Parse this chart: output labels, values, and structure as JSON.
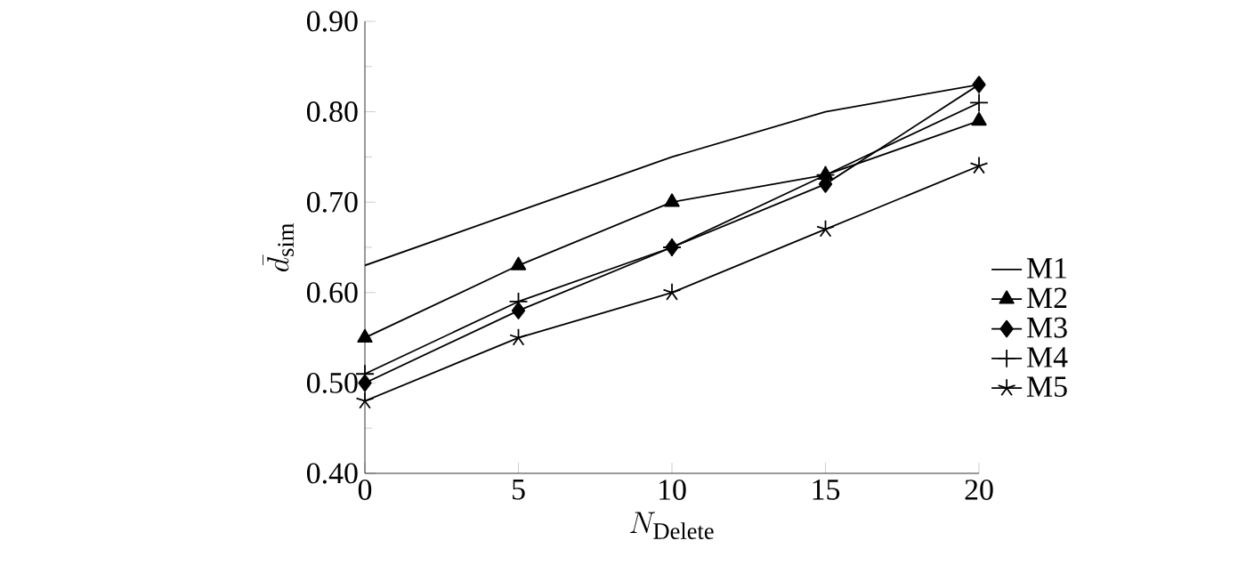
{
  "chart_data": {
    "type": "line",
    "xlabel": "N_{\\mathrm{Delete}}",
    "ylabel": "\\bar{d}_{\\mathrm{sim}}",
    "x": [
      0,
      5,
      10,
      15,
      20
    ],
    "series": [
      {
        "name": "M1",
        "color": "#000000",
        "marker": "none",
        "values": [
          0.63,
          0.69,
          0.75,
          0.8,
          0.83
        ]
      },
      {
        "name": "M2",
        "color": "#000000",
        "marker": "triangle",
        "values": [
          0.55,
          0.63,
          0.7,
          0.73,
          0.79
        ]
      },
      {
        "name": "M3",
        "color": "#000000",
        "marker": "diamond",
        "values": [
          0.5,
          0.58,
          0.65,
          0.72,
          0.83
        ]
      },
      {
        "name": "M4",
        "color": "#000000",
        "marker": "cross",
        "values": [
          0.51,
          0.59,
          0.65,
          0.73,
          0.81
        ]
      },
      {
        "name": "M5",
        "color": "#000000",
        "marker": "cross",
        "values": [
          0.48,
          0.55,
          0.6,
          0.67,
          0.74
        ]
      }
    ],
    "xlim": [
      0,
      20
    ],
    "ylim": [
      0.4,
      0.9
    ],
    "xticks": [
      0,
      5,
      10,
      15,
      20
    ],
    "yticks": [
      {
        "value": 0.4,
        "label": "0.40"
      },
      {
        "value": 0.5,
        "label": "0.50"
      },
      {
        "value": 0.6,
        "label": "0.60"
      },
      {
        "value": 0.7,
        "label": "0.70"
      },
      {
        "value": 0.8,
        "label": "0.80"
      },
      {
        "value": 0.9,
        "label": "0.90"
      }
    ],
    "legend": "right",
    "grid": false,
    "line_style": "solid"
  }
}
